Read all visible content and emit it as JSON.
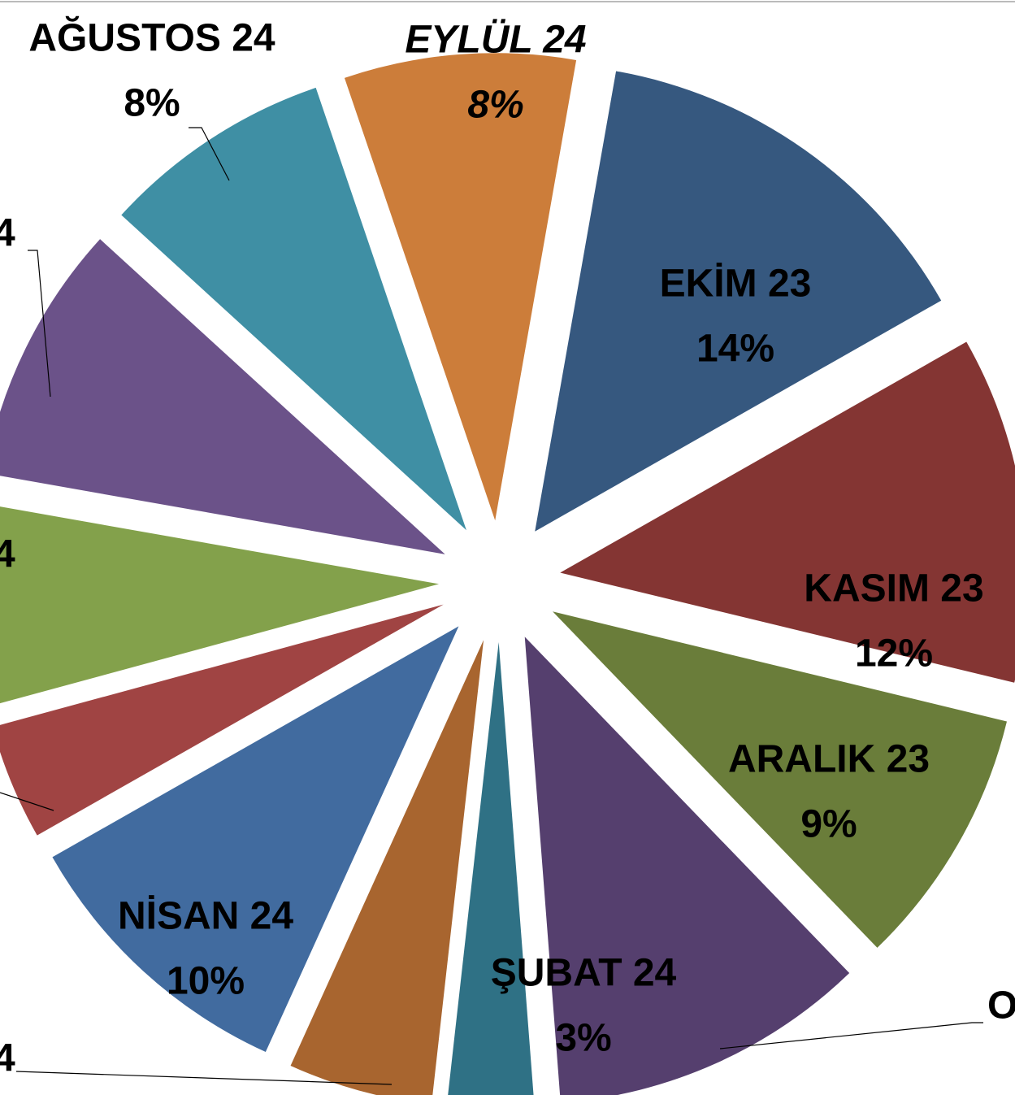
{
  "chart_data": {
    "type": "pie",
    "categories": [
      "EKİM 23",
      "KASIM 23",
      "ARALIK 23",
      "O",
      "ŞUBAT 24",
      "4",
      "NİSAN 24",
      null,
      "4",
      "4",
      "AĞUSTOS 24",
      "EYLÜL 24"
    ],
    "values": [
      14,
      12,
      9,
      11,
      3,
      5,
      10,
      4,
      7,
      9,
      8,
      8
    ],
    "value_labels": [
      "14%",
      "12%",
      "9%",
      null,
      "3%",
      null,
      "10%",
      null,
      null,
      null,
      "8%",
      "8%"
    ],
    "colors": [
      "#36587f",
      "#843533",
      "#6a7d3a",
      "#553f6e",
      "#2f7185",
      "#a8652f",
      "#416b9f",
      "#a04443",
      "#83a14b",
      "#6b5289",
      "#3f8fa4",
      "#cc7d3a"
    ],
    "highlight": {
      "index": 11,
      "color": "#ff0000",
      "italic": true
    },
    "exploded": true
  }
}
